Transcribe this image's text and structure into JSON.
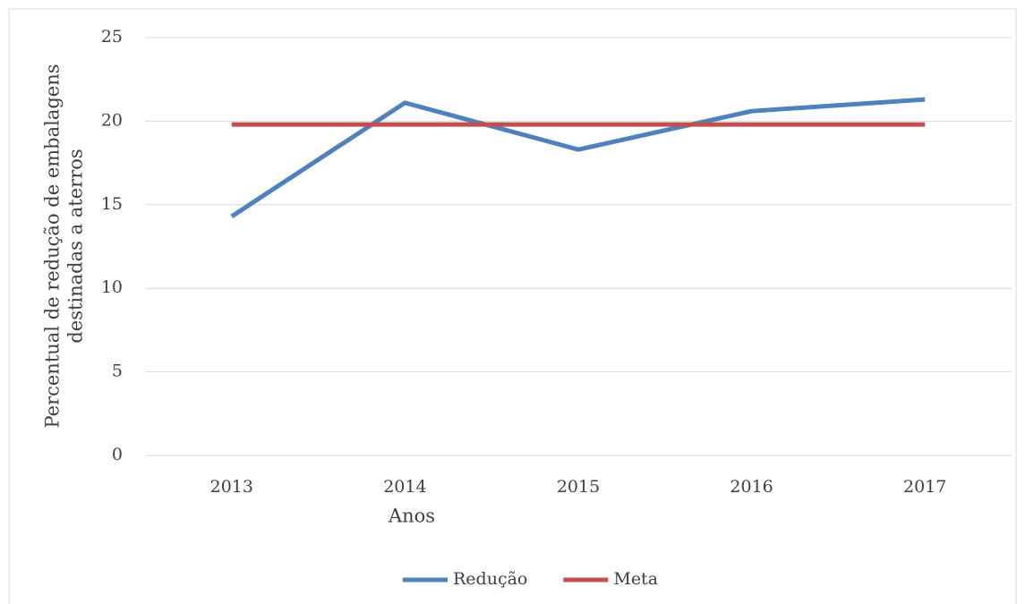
{
  "chart_data": {
    "type": "line",
    "ylabel": [
      "Percentual de redução de embalagens",
      "destinadas a aterros"
    ],
    "xlabel": "Anos",
    "categories": [
      "2013",
      "2014",
      "2015",
      "2016",
      "2017"
    ],
    "series": [
      {
        "name": "Redução",
        "color": "#4f81bd",
        "values": [
          14.3,
          21.1,
          18.3,
          20.6,
          21.3
        ]
      },
      {
        "name": "Meta",
        "color": "#c0504d",
        "values": [
          19.8,
          19.8,
          19.8,
          19.8,
          19.8
        ]
      }
    ],
    "ylim": [
      0,
      25
    ],
    "yticks": [
      0,
      5,
      10,
      15,
      20,
      25
    ],
    "grid": true,
    "legend": "bottom"
  }
}
